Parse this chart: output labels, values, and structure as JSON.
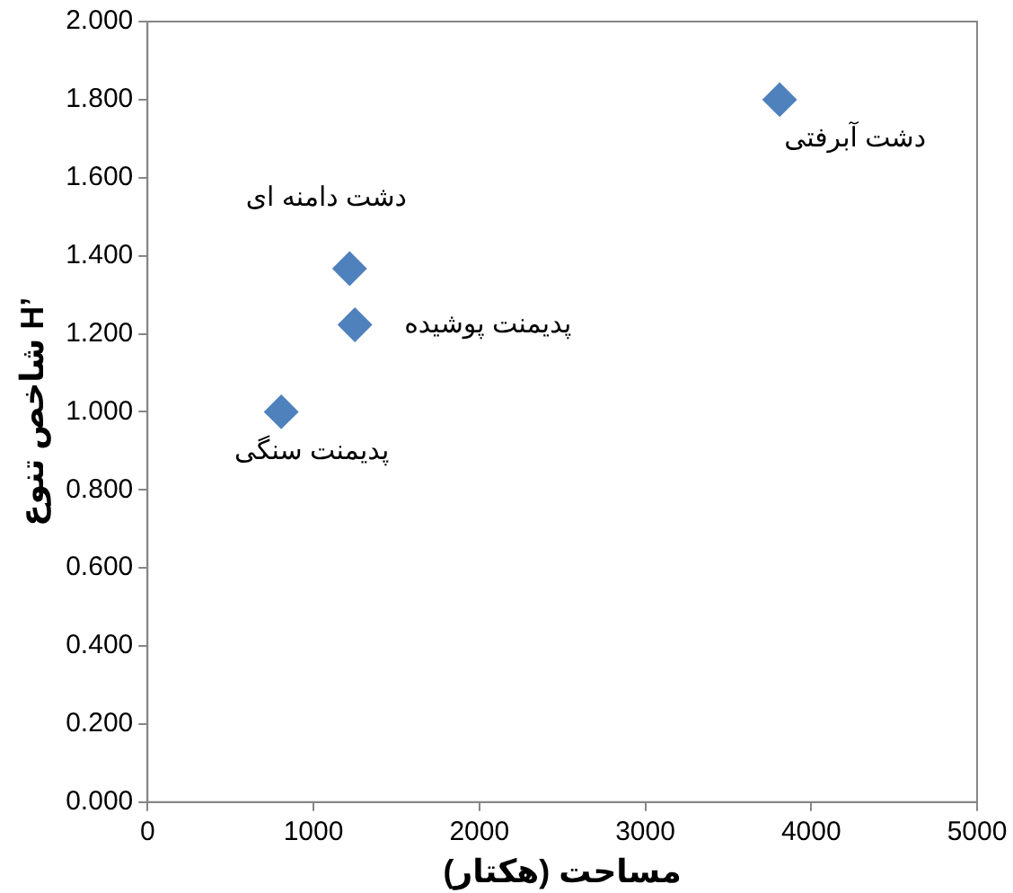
{
  "chart_data": {
    "type": "scatter",
    "xlabel": "مساحت (هکتار)",
    "ylabel": "شاخص تنوع H’",
    "x": [
      806,
      1218,
      1250,
      3810
    ],
    "values": [
      1.0,
      1.367,
      1.223,
      1.8
    ],
    "color": "#4f81bd",
    "marker": "diamond",
    "xlim": [
      0,
      5000
    ],
    "xticks": [
      0,
      1000,
      2000,
      3000,
      4000,
      5000
    ],
    "ylim": [
      0,
      2
    ],
    "yticks": [
      {
        "value": 0,
        "label": "0.000"
      },
      {
        "value": 0.2,
        "label": "0.200"
      },
      {
        "value": 0.4,
        "label": "0.400"
      },
      {
        "value": 0.6,
        "label": "0.600"
      },
      {
        "value": 0.8,
        "label": "0.800"
      },
      {
        "value": 1,
        "label": "1.000"
      },
      {
        "value": 1.2,
        "label": "1.200"
      },
      {
        "value": 1.4,
        "label": "1.400"
      },
      {
        "value": 1.6,
        "label": "1.600"
      },
      {
        "value": 1.8,
        "label": "1.800"
      },
      {
        "value": 2,
        "label": "2.000"
      }
    ],
    "grid": false,
    "legend": false,
    "annotations": [
      {
        "text": "پدیمنت سنگی",
        "x": 806,
        "y": 1.0
      },
      {
        "text": "دشت دامنه ای",
        "x": 1218,
        "y": 1.367
      },
      {
        "text": "پدیمنت پوشیده",
        "x": 1250,
        "y": 1.223
      },
      {
        "text": "دشت آبرفتی",
        "x": 3810,
        "y": 1.8
      }
    ]
  }
}
